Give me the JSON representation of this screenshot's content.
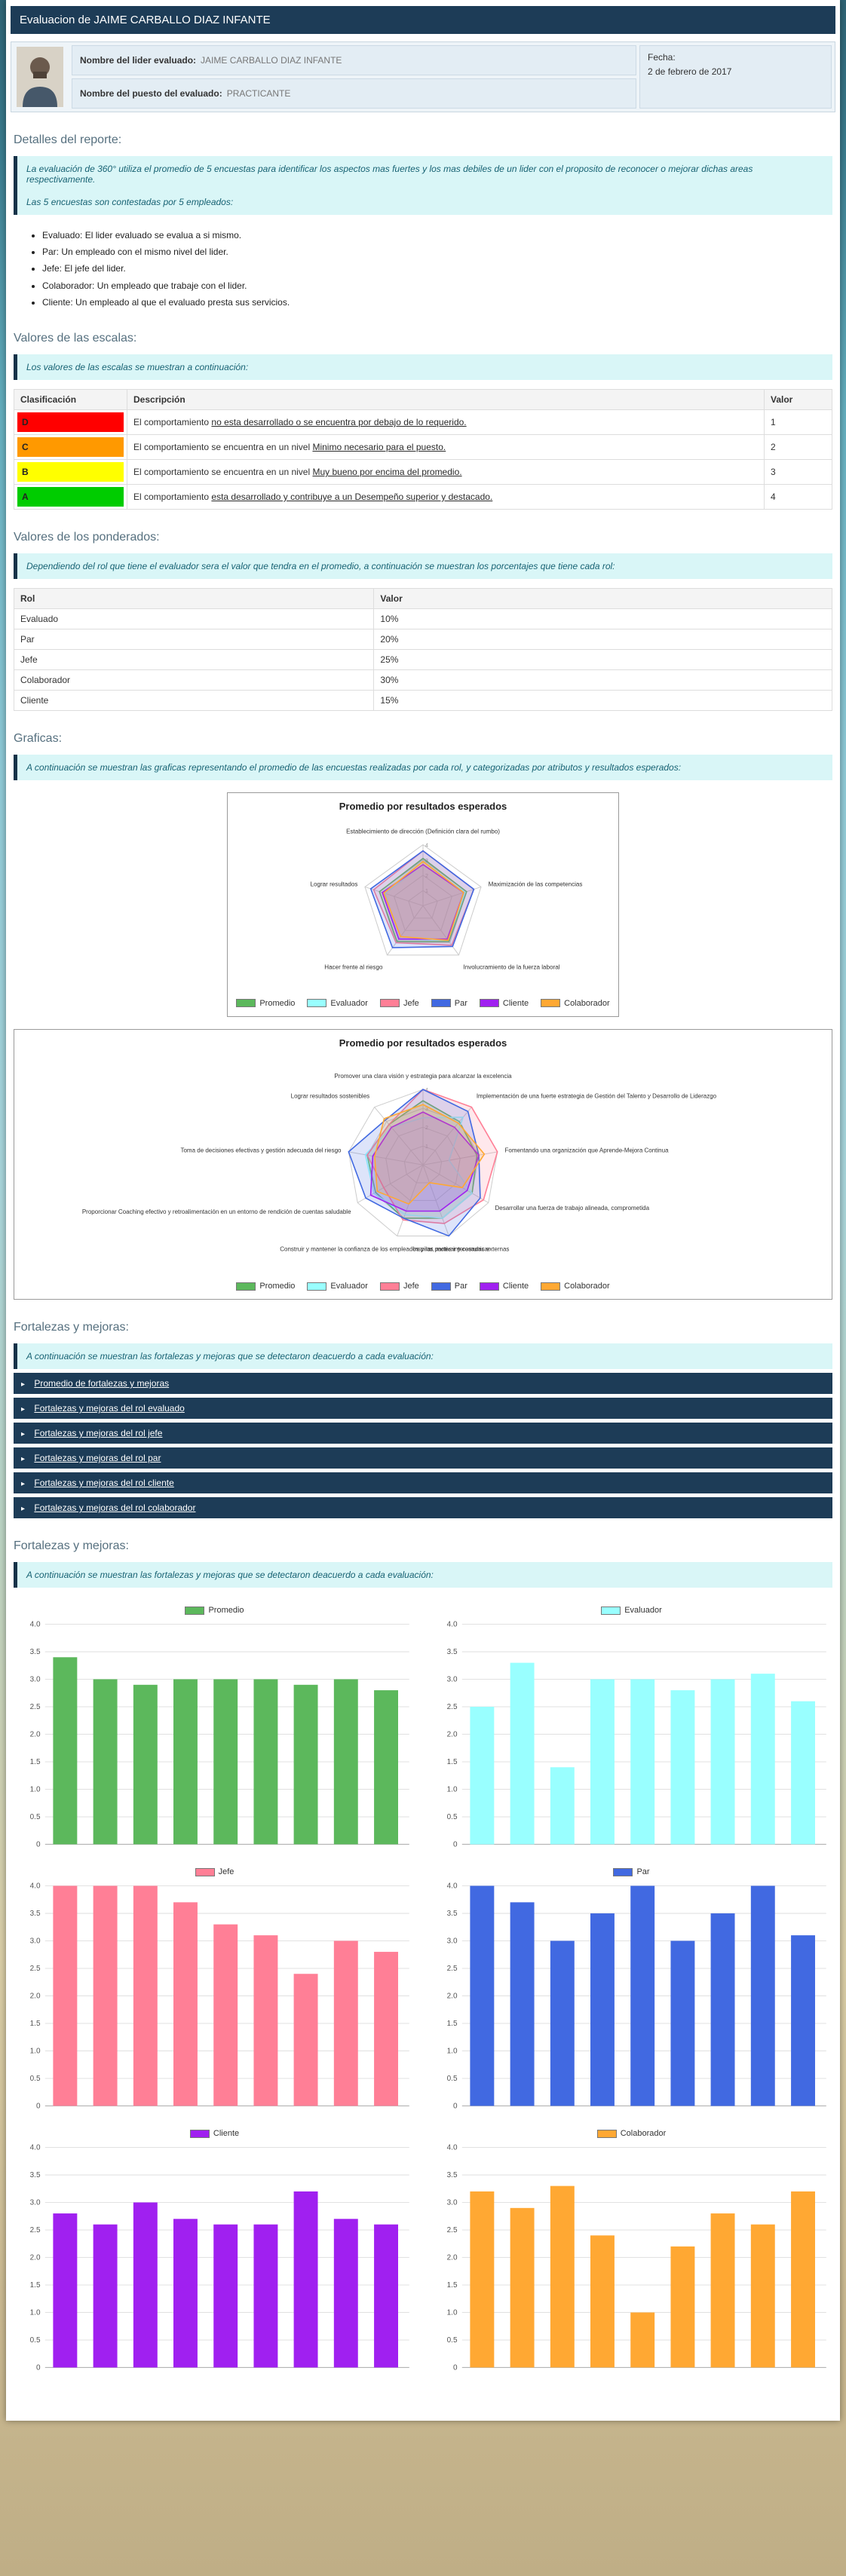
{
  "header": {
    "title": "Evaluacion de JAIME CARBALLO DIAZ INFANTE"
  },
  "info": {
    "name_label": "Nombre del lider evaluado:",
    "name_value": "JAIME CARBALLO DIAZ INFANTE",
    "position_label": "Nombre del puesto del evaluado:",
    "position_value": "PRACTICANTE",
    "date_label": "Fecha:",
    "date_value": "2 de febrero de 2017"
  },
  "details": {
    "title": "Detalles del reporte:",
    "note1": "La evaluación de 360° utiliza el promedio de 5 encuestas para identificar los aspectos mas fuertes y los mas debiles de un lider con el proposito de reconocer o mejorar dichas areas respectivamente.",
    "note2": "Las 5 encuestas son contestadas por 5 empleados:",
    "bullets": [
      "Evaluado: El lider evaluado se evalua a si mismo.",
      "Par: Un empleado con el mismo nivel del lider.",
      "Jefe: El jefe del lider.",
      "Colaborador: Un empleado que trabaje con el lider.",
      "Cliente: Un empleado al que el evaluado presta sus servicios."
    ]
  },
  "scales": {
    "title": "Valores de las escalas:",
    "note": "Los valores de las escalas se muestran a continuación:",
    "headers": [
      "Clasificación",
      "Descripción",
      "Valor"
    ],
    "rows": [
      {
        "letter": "D",
        "color": "#ff0000",
        "desc_prefix": "El comportamiento ",
        "desc_underline": "no esta desarrollado o se encuentra por debajo de lo requerido.",
        "value": "1"
      },
      {
        "letter": "C",
        "color": "#ff9900",
        "desc_prefix": "El comportamiento se encuentra en un nivel ",
        "desc_underline": "Minimo necesario para el puesto.",
        "value": "2"
      },
      {
        "letter": "B",
        "color": "#ffff00",
        "desc_prefix": "El comportamiento se encuentra en un nivel ",
        "desc_underline": "Muy bueno por encima del promedio.",
        "value": "3"
      },
      {
        "letter": "A",
        "color": "#00cc00",
        "desc_prefix": "El comportamiento ",
        "desc_underline": "esta desarrollado y contribuye a un Desempeño superior y destacado.",
        "value": "4"
      }
    ]
  },
  "weights": {
    "title": "Valores de los ponderados:",
    "note": "Dependiendo del rol que tiene el evaluador sera el valor que tendra en el promedio, a continuación se muestran los porcentajes que tiene cada rol:",
    "headers": [
      "Rol",
      "Valor"
    ],
    "rows": [
      {
        "role": "Evaluado",
        "value": "10%"
      },
      {
        "role": "Par",
        "value": "20%"
      },
      {
        "role": "Jefe",
        "value": "25%"
      },
      {
        "role": "Colaborador",
        "value": "30%"
      },
      {
        "role": "Cliente",
        "value": "15%"
      }
    ]
  },
  "charts": {
    "title": "Graficas:",
    "note": "A continuación se muestran las graficas representando el promedio de las encuestas realizadas por cada rol, y categorizadas por atributos y resultados esperados:"
  },
  "strengths": {
    "title": "Fortalezas y mejoras:",
    "note": "A continuación se muestran las fortalezas y mejoras que se detectaron deacuerdo a cada evaluación:",
    "accordion": [
      "Promedio de fortalezas y mejoras",
      "Fortalezas y mejoras del rol evaluado",
      "Fortalezas y mejoras del rol jefe",
      "Fortalezas y mejoras del rol par",
      "Fortalezas y mejoras del rol cliente",
      "Fortalezas y mejoras del rol colaborador"
    ]
  },
  "chart_data": [
    {
      "type": "radar",
      "title": "Promedio por resultados esperados",
      "max": 4,
      "legend_position": "bottom",
      "categories": [
        "Establecimiento de dirección (Definición clara del rumbo)",
        "Maximización de las competencias",
        "Involucramiento de la fuerza laboral",
        "Hacer frente al riesgo",
        "Lograr resultados"
      ],
      "series": [
        {
          "name": "Promedio",
          "color": "#5cb85c",
          "values": [
            3.1,
            3.0,
            2.9,
            2.9,
            3.0
          ]
        },
        {
          "name": "Evaluador",
          "color": "#99ffff",
          "values": [
            2.7,
            2.9,
            2.8,
            2.7,
            2.6
          ]
        },
        {
          "name": "Jefe",
          "color": "#ff7f96",
          "values": [
            3.6,
            3.5,
            3.2,
            3.0,
            3.4
          ]
        },
        {
          "name": "Par",
          "color": "#4169e1",
          "values": [
            3.6,
            3.5,
            3.3,
            3.4,
            3.6
          ]
        },
        {
          "name": "Cliente",
          "color": "#a020f0",
          "values": [
            2.7,
            2.8,
            2.7,
            2.7,
            2.8
          ]
        },
        {
          "name": "Colaborador",
          "color": "#ffa833",
          "values": [
            2.9,
            2.8,
            2.8,
            2.5,
            2.7
          ]
        }
      ]
    },
    {
      "type": "radar",
      "title": "Promedio por resultados esperados",
      "max": 4,
      "legend_position": "bottom",
      "categories": [
        "Promover una clara visión y estrategia para alcanzar la excelencia",
        "Implementación de una fuerte estrategia de Gestión del Talento y Desarrollo de Liderazgo",
        "Fomentando una organización que Aprende-Mejora Continua",
        "Desarrollar una fuerza de trabajo alineada, comprometida",
        "Inspirar, motivar y comunicar",
        "Construir y mantener la confianza de los empleados y las partes interesadas externas",
        "Proporcionar Coaching efectivo y retroalimentación en un entorno de rendición de cuentas saludable",
        "Toma de decisiones efectivas y gestión adecuada del riesgo",
        "Lograr resultados sostenibles"
      ],
      "series": [
        {
          "name": "Promedio",
          "color": "#5cb85c",
          "values": [
            3.4,
            3.0,
            2.9,
            3.0,
            3.0,
            3.0,
            2.9,
            3.0,
            2.8
          ]
        },
        {
          "name": "Evaluador",
          "color": "#99ffff",
          "values": [
            2.5,
            3.3,
            1.4,
            3.0,
            3.0,
            2.8,
            3.0,
            3.1,
            2.6
          ]
        },
        {
          "name": "Jefe",
          "color": "#ff7f96",
          "values": [
            4.0,
            4.0,
            4.0,
            3.7,
            3.3,
            3.1,
            2.4,
            3.0,
            2.8
          ]
        },
        {
          "name": "Par",
          "color": "#4169e1",
          "values": [
            4.0,
            3.7,
            3.0,
            3.5,
            4.0,
            3.0,
            3.5,
            4.0,
            3.1
          ]
        },
        {
          "name": "Cliente",
          "color": "#a020f0",
          "values": [
            2.8,
            2.6,
            3.0,
            2.7,
            2.6,
            2.6,
            3.2,
            2.7,
            2.6
          ]
        },
        {
          "name": "Colaborador",
          "color": "#ffa833",
          "values": [
            3.2,
            2.9,
            3.3,
            2.4,
            1.0,
            2.2,
            2.8,
            2.6,
            3.2
          ]
        }
      ]
    },
    {
      "type": "bar",
      "title": "Promedio",
      "color": "#5cb85c",
      "ylim": [
        0,
        4
      ],
      "values": [
        3.4,
        3.0,
        2.9,
        3.0,
        3.0,
        3.0,
        2.9,
        3.0,
        2.8
      ]
    },
    {
      "type": "bar",
      "title": "Evaluador",
      "color": "#99ffff",
      "ylim": [
        0,
        4
      ],
      "values": [
        2.5,
        3.3,
        1.4,
        3.0,
        3.0,
        2.8,
        3.0,
        3.1,
        2.6
      ]
    },
    {
      "type": "bar",
      "title": "Jefe",
      "color": "#ff7f96",
      "ylim": [
        0,
        4
      ],
      "values": [
        4.0,
        4.0,
        4.0,
        3.7,
        3.3,
        3.1,
        2.4,
        3.0,
        2.8
      ]
    },
    {
      "type": "bar",
      "title": "Par",
      "color": "#4169e1",
      "ylim": [
        0,
        4
      ],
      "values": [
        4.0,
        3.7,
        3.0,
        3.5,
        4.0,
        3.0,
        3.5,
        4.0,
        3.1
      ]
    },
    {
      "type": "bar",
      "title": "Cliente",
      "color": "#a020f0",
      "ylim": [
        0,
        4
      ],
      "values": [
        2.8,
        2.6,
        3.0,
        2.7,
        2.6,
        2.6,
        3.2,
        2.7,
        2.6
      ]
    },
    {
      "type": "bar",
      "title": "Colaborador",
      "color": "#ffa833",
      "ylim": [
        0,
        4
      ],
      "values": [
        3.2,
        2.9,
        3.3,
        2.4,
        1.0,
        2.2,
        2.8,
        2.6,
        3.2
      ]
    }
  ]
}
